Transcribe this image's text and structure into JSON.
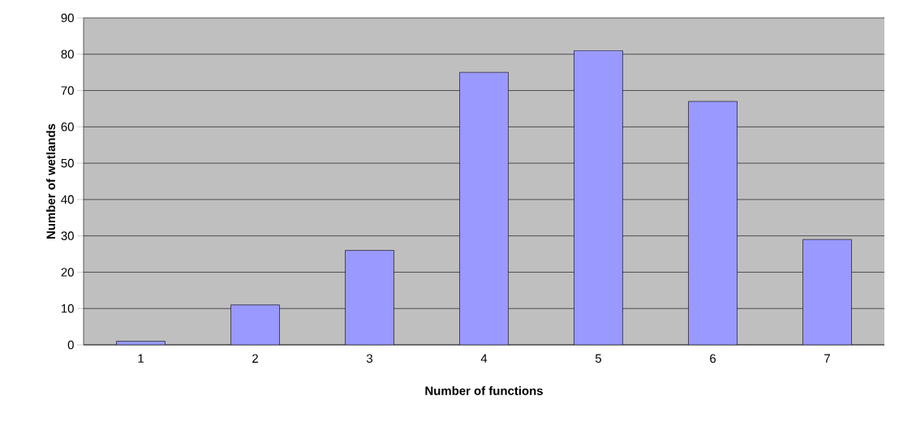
{
  "chart_data": {
    "type": "bar",
    "xlabel": "Number of functions",
    "ylabel": "Number of wetlands",
    "categories": [
      "1",
      "2",
      "3",
      "4",
      "5",
      "6",
      "7"
    ],
    "values": [
      1,
      11,
      26,
      75,
      81,
      67,
      29
    ],
    "color": "#9999ff",
    "ylim": [
      0,
      90
    ],
    "yticks": [
      0,
      10,
      20,
      30,
      40,
      50,
      60,
      70,
      80,
      90
    ],
    "grid": "y"
  }
}
